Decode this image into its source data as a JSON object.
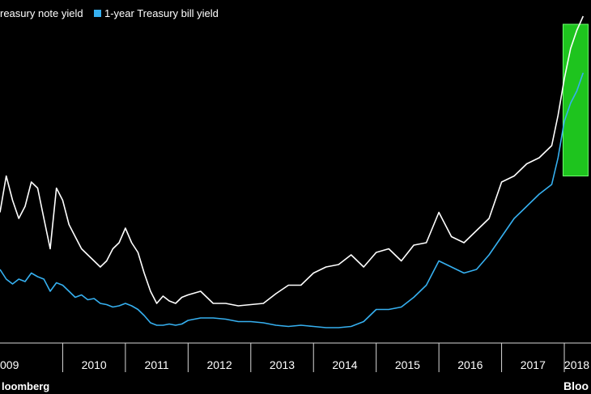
{
  "chart_data": {
    "type": "line",
    "title": "",
    "xlabel": "",
    "ylabel": "",
    "x_tick_labels": [
      "009",
      "2010",
      "2011",
      "2012",
      "2013",
      "2014",
      "2015",
      "2016",
      "2017",
      "2018"
    ],
    "xlim": [
      2009.0,
      2018.4
    ],
    "ylim": [
      0,
      2.6
    ],
    "grid": false,
    "legend_position": "top-left",
    "series": [
      {
        "name": "reasury note yield",
        "color": "#ffffff",
        "x": [
          2009.0,
          2009.1,
          2009.2,
          2009.3,
          2009.4,
          2009.5,
          2009.6,
          2009.7,
          2009.8,
          2009.9,
          2010.0,
          2010.1,
          2010.2,
          2010.3,
          2010.4,
          2010.5,
          2010.6,
          2010.7,
          2010.8,
          2010.9,
          2011.0,
          2011.1,
          2011.2,
          2011.3,
          2011.4,
          2011.5,
          2011.6,
          2011.7,
          2011.8,
          2011.9,
          2012.0,
          2012.2,
          2012.4,
          2012.6,
          2012.8,
          2013.0,
          2013.2,
          2013.4,
          2013.6,
          2013.8,
          2014.0,
          2014.2,
          2014.4,
          2014.6,
          2014.8,
          2015.0,
          2015.2,
          2015.4,
          2015.6,
          2015.8,
          2016.0,
          2016.2,
          2016.4,
          2016.6,
          2016.8,
          2017.0,
          2017.2,
          2017.4,
          2017.6,
          2017.8,
          2017.9,
          2018.0,
          2018.1,
          2018.2,
          2018.3
        ],
        "y": [
          1.05,
          1.35,
          1.15,
          1.0,
          1.1,
          1.3,
          1.25,
          1.0,
          0.75,
          1.25,
          1.15,
          0.95,
          0.85,
          0.75,
          0.7,
          0.65,
          0.6,
          0.65,
          0.75,
          0.8,
          0.92,
          0.8,
          0.72,
          0.55,
          0.4,
          0.3,
          0.36,
          0.32,
          0.3,
          0.35,
          0.37,
          0.4,
          0.3,
          0.3,
          0.28,
          0.29,
          0.3,
          0.38,
          0.45,
          0.45,
          0.55,
          0.6,
          0.62,
          0.7,
          0.6,
          0.72,
          0.75,
          0.65,
          0.78,
          0.8,
          1.05,
          0.85,
          0.8,
          0.9,
          1.0,
          1.3,
          1.35,
          1.45,
          1.5,
          1.6,
          1.85,
          2.15,
          2.4,
          2.55,
          2.7
        ]
      },
      {
        "name": "1-year Treasury bill yield",
        "color": "#36b0f0",
        "x": [
          2009.0,
          2009.1,
          2009.2,
          2009.3,
          2009.4,
          2009.5,
          2009.6,
          2009.7,
          2009.8,
          2009.9,
          2010.0,
          2010.1,
          2010.2,
          2010.3,
          2010.4,
          2010.5,
          2010.6,
          2010.7,
          2010.8,
          2010.9,
          2011.0,
          2011.1,
          2011.2,
          2011.3,
          2011.4,
          2011.5,
          2011.6,
          2011.7,
          2011.8,
          2011.9,
          2012.0,
          2012.2,
          2012.4,
          2012.6,
          2012.8,
          2013.0,
          2013.2,
          2013.4,
          2013.6,
          2013.8,
          2014.0,
          2014.2,
          2014.4,
          2014.6,
          2014.8,
          2015.0,
          2015.2,
          2015.4,
          2015.6,
          2015.8,
          2016.0,
          2016.2,
          2016.4,
          2016.6,
          2016.8,
          2017.0,
          2017.2,
          2017.4,
          2017.6,
          2017.8,
          2017.9,
          2018.0,
          2018.1,
          2018.2,
          2018.3
        ],
        "y": [
          0.58,
          0.5,
          0.46,
          0.5,
          0.48,
          0.55,
          0.52,
          0.5,
          0.4,
          0.47,
          0.45,
          0.4,
          0.35,
          0.37,
          0.33,
          0.34,
          0.3,
          0.29,
          0.27,
          0.28,
          0.3,
          0.28,
          0.25,
          0.2,
          0.14,
          0.12,
          0.12,
          0.13,
          0.12,
          0.13,
          0.16,
          0.18,
          0.18,
          0.17,
          0.15,
          0.15,
          0.14,
          0.12,
          0.11,
          0.12,
          0.11,
          0.1,
          0.1,
          0.11,
          0.15,
          0.25,
          0.25,
          0.27,
          0.35,
          0.45,
          0.65,
          0.6,
          0.55,
          0.58,
          0.7,
          0.85,
          1.0,
          1.1,
          1.2,
          1.28,
          1.5,
          1.8,
          1.95,
          2.05,
          2.2
        ]
      }
    ],
    "highlight": {
      "x_range": [
        2017.98,
        2018.38
      ],
      "y_range": [
        1.35,
        2.6
      ],
      "color": "#1ec41e"
    },
    "source_label": "loomberg",
    "brand_label": "Bloo"
  }
}
